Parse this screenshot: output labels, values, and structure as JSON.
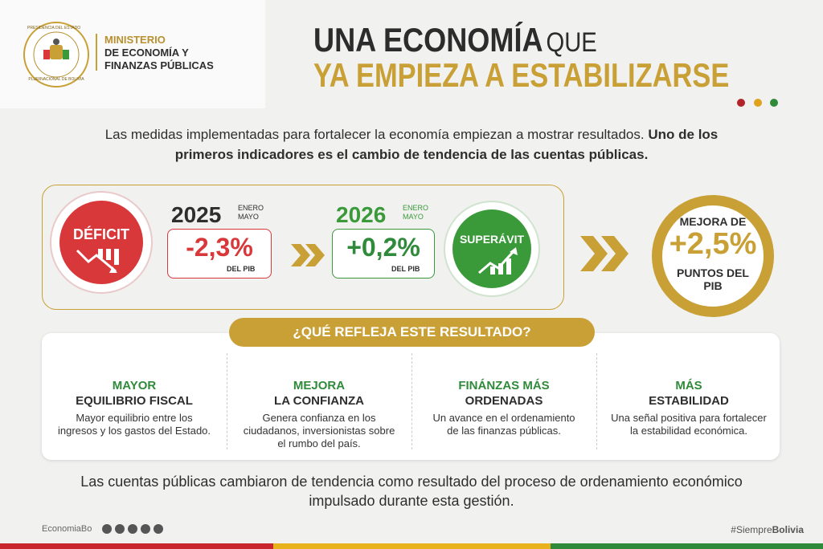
{
  "header": {
    "seal_text": [
      "PRESIDENCIA DEL ESTADO",
      "PLURINACIONAL DE BOLIVIA"
    ],
    "ministry": [
      "MINISTERIO",
      "DE ECONOMÍA Y",
      "FINANZAS PÚBLICAS"
    ],
    "title_line1": "UNA ECONOMÍA",
    "title_que": "QUE",
    "title_line2": "YA EMPIEZA A ESTABILIZARSE"
  },
  "intro": {
    "lines": [
      "Las medidas implementadas para fortalecer la economía empiezan a mostrar resultados."
    ],
    "bold_lines": [
      "Uno de los",
      "primeros indicadores es el cambio de tendencia de las cuentas públicas."
    ]
  },
  "comparison": {
    "deficit": {
      "label": "DÉFICIT",
      "year": "2025",
      "period": [
        "ENERO",
        "MAYO"
      ],
      "value": "-2,3%",
      "unit": "DEL PIB"
    },
    "superavit": {
      "label": "SUPERÁVIT",
      "year": "2026",
      "period": [
        "ENERO",
        "MAYO"
      ],
      "value": "+0,2%",
      "unit": "DEL PIB"
    },
    "improvement": {
      "top": "MEJORA DE",
      "value": "+2,5%",
      "bottom": [
        "PUNTOS DEL",
        "PIB"
      ]
    }
  },
  "reflects": {
    "title": "¿QUÉ REFLEJA ESTE RESULTADO?",
    "items": [
      {
        "kicker": "MAYOR",
        "heading": "EQUILIBRIO FISCAL",
        "lines": [
          "Mayor equilibrio entre los",
          "ingresos y los gastos del Estado."
        ]
      },
      {
        "kicker": "MEJORA",
        "heading": "LA CONFIANZA",
        "lines": [
          "Genera confianza en los",
          "ciudadanos, inversionistas sobre",
          "el rumbo del país."
        ]
      },
      {
        "kicker": "FINÁNZAS MÁS",
        "heading": "ORDENADAS",
        "lines": [
          "Un avance en el ordenamiento",
          "de las finanzas públicas."
        ]
      },
      {
        "kicker": "MÁS",
        "heading": "ESTABILIDAD",
        "lines": [
          "Una señal positiva para fortalecer",
          "la estabilidad económica."
        ]
      }
    ]
  },
  "conclusion": [
    "Las cuentas públicas cambiaron de tendencia como resultado del proceso de ordenamiento económico",
    "impulsado durante esta gestión."
  ],
  "footer": {
    "handle": "EconomiaBo",
    "hashtag_prefix": "#Siempre",
    "hashtag_bold": "Bolivia"
  }
}
